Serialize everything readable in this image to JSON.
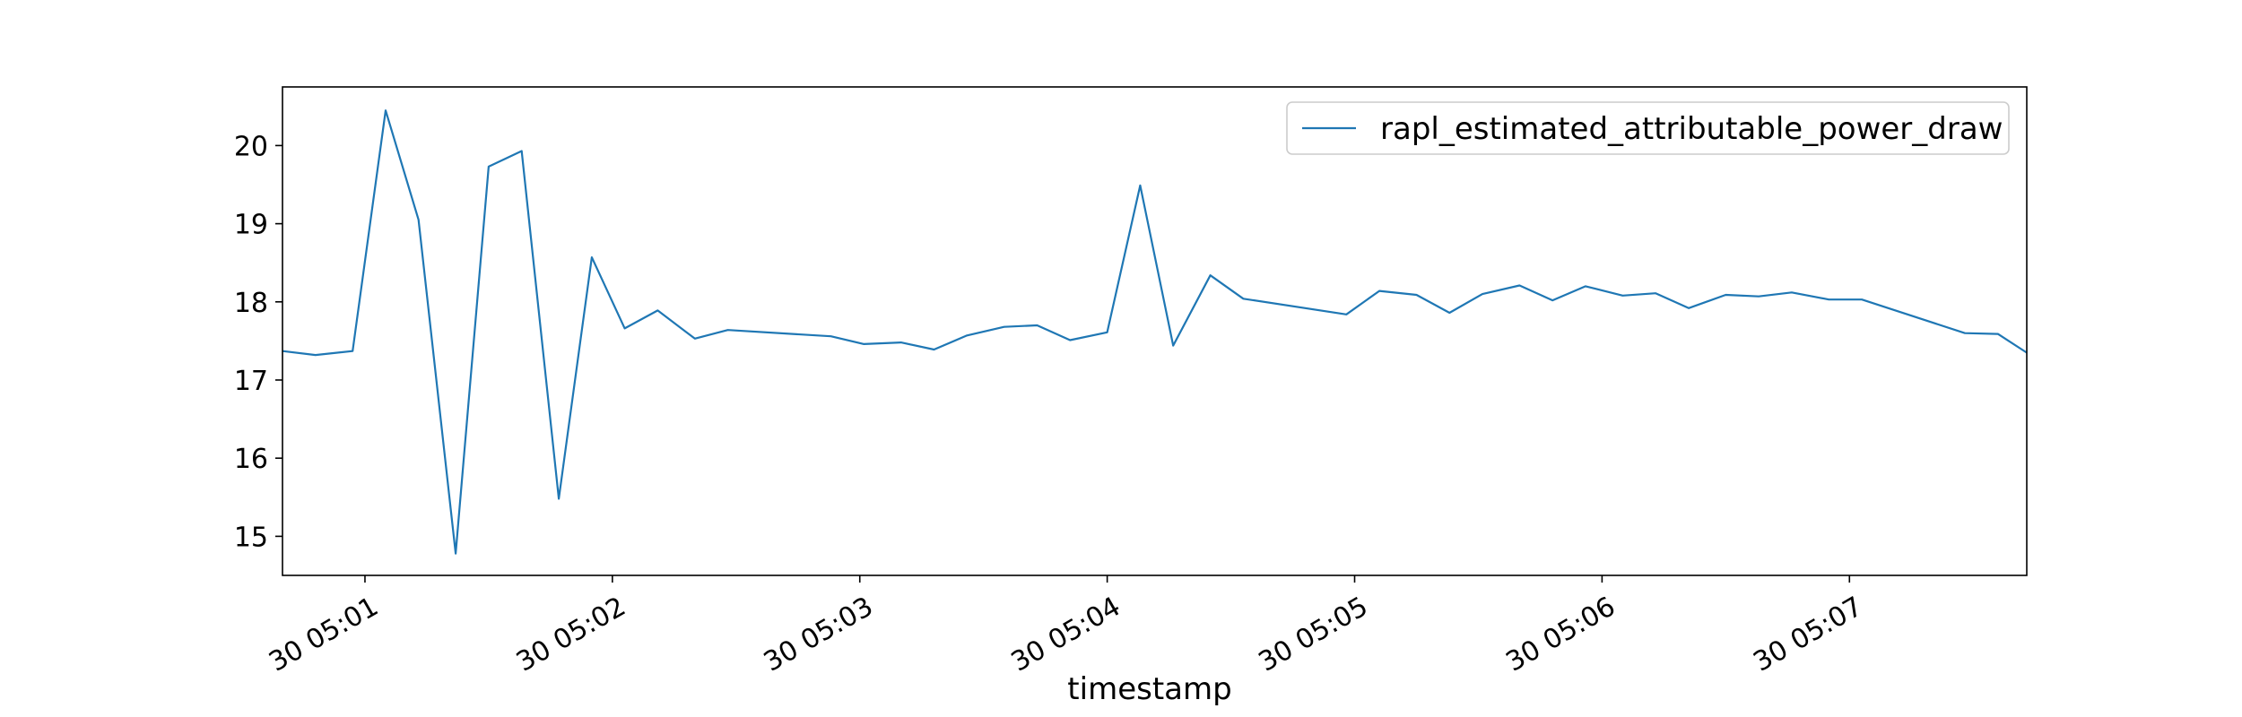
{
  "chart_data": {
    "type": "line",
    "title": "",
    "xlabel": "timestamp",
    "ylabel": "",
    "legend_position": "top-right",
    "grid": false,
    "x_date_prefix": "30",
    "xlim": [
      "05:00:40",
      "05:07:43"
    ],
    "ylim": [
      14.5,
      20.75
    ],
    "x_ticks": [
      {
        "time": "05:01:00",
        "label": "30 05:01"
      },
      {
        "time": "05:02:00",
        "label": "30 05:02"
      },
      {
        "time": "05:03:00",
        "label": "30 05:03"
      },
      {
        "time": "05:04:00",
        "label": "30 05:04"
      },
      {
        "time": "05:05:00",
        "label": "30 05:05"
      },
      {
        "time": "05:06:00",
        "label": "30 05:06"
      },
      {
        "time": "05:07:00",
        "label": "30 05:07"
      }
    ],
    "y_ticks": [
      15,
      16,
      17,
      18,
      19,
      20
    ],
    "series": [
      {
        "name": "rapl_estimated_attributable_power_draw",
        "color": "#1f77b4",
        "x": [
          "05:00:40",
          "05:00:48",
          "05:00:57",
          "05:01:05",
          "05:01:13",
          "05:01:22",
          "05:01:30",
          "05:01:38",
          "05:01:47",
          "05:01:55",
          "05:02:03",
          "05:02:11",
          "05:02:20",
          "05:02:28",
          "05:02:53",
          "05:03:01",
          "05:03:10",
          "05:03:18",
          "05:03:26",
          "05:03:35",
          "05:03:43",
          "05:03:51",
          "05:04:00",
          "05:04:08",
          "05:04:16",
          "05:04:25",
          "05:04:33",
          "05:04:58",
          "05:05:06",
          "05:05:15",
          "05:05:23",
          "05:05:31",
          "05:05:40",
          "05:05:48",
          "05:05:56",
          "05:06:05",
          "05:06:13",
          "05:06:21",
          "05:06:30",
          "05:06:38",
          "05:06:46",
          "05:06:55",
          "05:07:03",
          "05:07:28",
          "05:07:36",
          "05:07:43"
        ],
        "values": [
          17.37,
          17.32,
          17.37,
          20.45,
          19.05,
          14.78,
          19.73,
          19.93,
          15.48,
          18.57,
          17.66,
          17.89,
          17.53,
          17.64,
          17.56,
          17.46,
          17.48,
          17.39,
          17.57,
          17.68,
          17.7,
          17.51,
          17.61,
          19.49,
          17.44,
          18.34,
          18.04,
          17.84,
          18.14,
          18.09,
          17.86,
          18.1,
          18.21,
          18.02,
          18.2,
          18.08,
          18.11,
          17.92,
          18.09,
          18.07,
          18.12,
          18.03,
          18.03,
          17.6,
          17.59,
          17.35
        ]
      }
    ]
  }
}
